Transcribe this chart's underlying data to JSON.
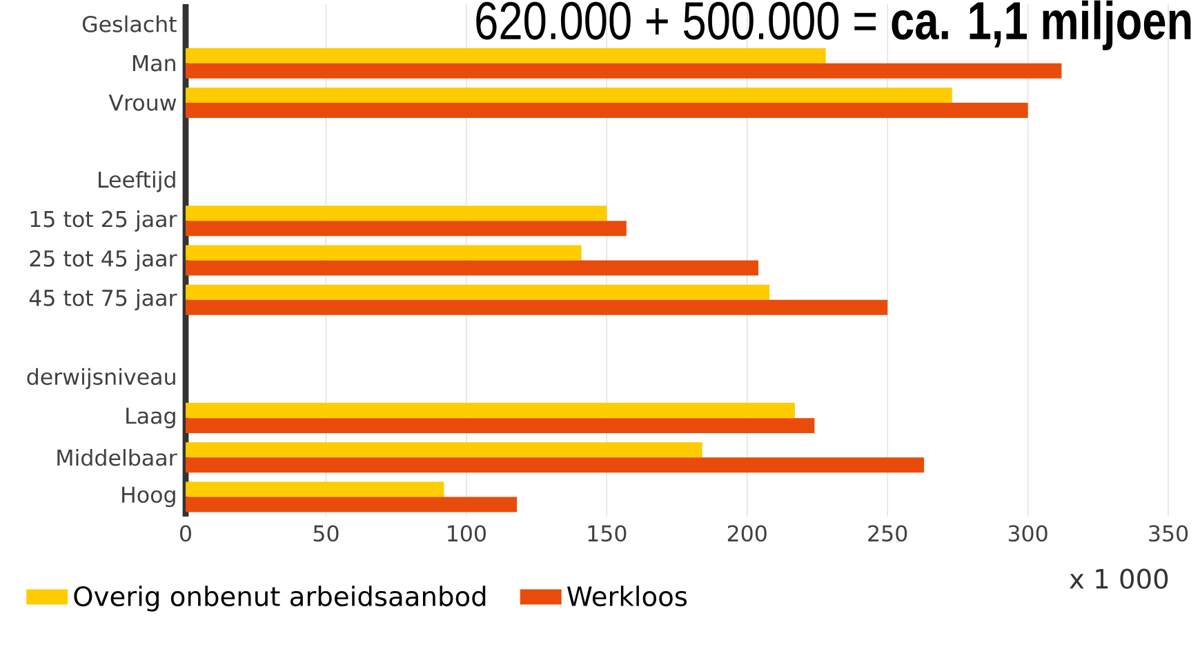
{
  "chart_data": {
    "type": "bar",
    "orientation": "horizontal",
    "title": "620.000 + 500.000 = **ca. 1,1 miljoen**",
    "categories": [
      "Geslacht",
      "Man",
      "Vrouw",
      null,
      "Leeftijd",
      "15 tot 25 jaar",
      "25 tot 45 jaar",
      "45 tot 75 jaar",
      null,
      "derwijsniveau",
      "Laag",
      "Middelbaar",
      "Hoog"
    ],
    "series": [
      {
        "name": "Overig onbenut arbeidsaanbod",
        "color": "#ffcc00",
        "values": [
          null,
          228,
          273,
          null,
          null,
          150,
          141,
          208,
          null,
          null,
          217,
          184,
          92
        ]
      },
      {
        "name": "Werkloos",
        "color": "#e94c0a",
        "values": [
          null,
          312,
          300,
          null,
          null,
          157,
          204,
          250,
          null,
          null,
          224,
          263,
          118
        ]
      }
    ],
    "xlim": [
      0,
      350
    ],
    "xticks": [
      0,
      50,
      100,
      150,
      200,
      250,
      300,
      350
    ],
    "grid": "x",
    "legend": "bottom",
    "annotations": [
      "x 1 000"
    ]
  }
}
